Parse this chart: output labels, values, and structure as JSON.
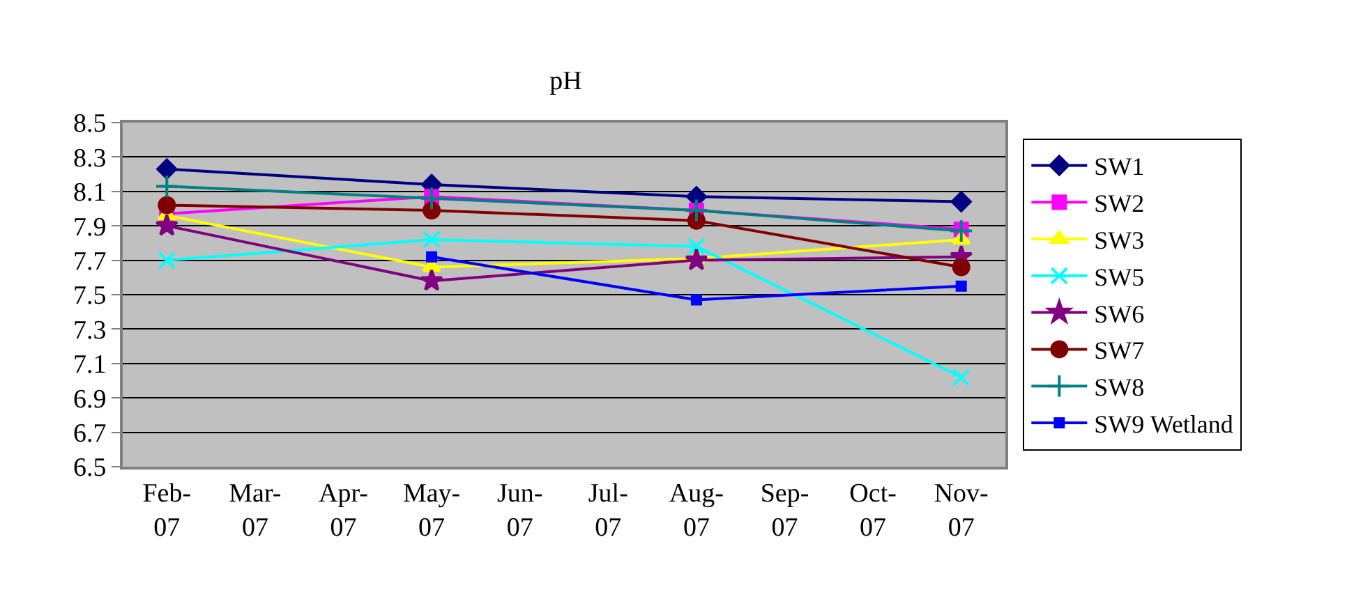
{
  "chart_data": {
    "type": "line",
    "title": "pH",
    "categories": [
      "Feb-07",
      "Mar-07",
      "Apr-07",
      "May-07",
      "Jun-07",
      "Jul-07",
      "Aug-07",
      "Sep-07",
      "Oct-07",
      "Nov-07"
    ],
    "series": [
      {
        "name": "SW1",
        "color": "#000080",
        "marker": "diamond",
        "values": [
          8.23,
          null,
          null,
          8.14,
          null,
          null,
          8.07,
          null,
          null,
          8.04
        ]
      },
      {
        "name": "SW2",
        "color": "#ff00ff",
        "marker": "square",
        "values": [
          7.97,
          null,
          null,
          8.07,
          null,
          null,
          7.99,
          null,
          null,
          7.88
        ]
      },
      {
        "name": "SW3",
        "color": "#ffff00",
        "marker": "triangle",
        "values": [
          7.96,
          null,
          null,
          7.66,
          null,
          null,
          7.71,
          null,
          null,
          7.82
        ]
      },
      {
        "name": "SW5",
        "color": "#00ffff",
        "marker": "x",
        "values": [
          7.7,
          null,
          null,
          7.82,
          null,
          null,
          7.78,
          null,
          null,
          7.02
        ]
      },
      {
        "name": "SW6",
        "color": "#800080",
        "marker": "star",
        "values": [
          7.9,
          null,
          null,
          7.58,
          null,
          null,
          7.7,
          null,
          null,
          7.72
        ]
      },
      {
        "name": "SW7",
        "color": "#800000",
        "marker": "circle",
        "values": [
          8.02,
          null,
          null,
          7.99,
          null,
          null,
          7.93,
          null,
          null,
          7.66
        ]
      },
      {
        "name": "SW8",
        "color": "#008080",
        "marker": "cross",
        "values": [
          8.13,
          null,
          null,
          8.06,
          null,
          null,
          7.99,
          null,
          null,
          7.87
        ]
      },
      {
        "name": "SW9 Wetland",
        "color": "#0000ff",
        "marker": "square",
        "values": [
          null,
          null,
          null,
          7.72,
          null,
          null,
          7.47,
          null,
          null,
          7.55
        ]
      }
    ],
    "ylim": [
      6.5,
      8.5
    ],
    "yticks": [
      6.5,
      6.7,
      6.9,
      7.1,
      7.3,
      7.5,
      7.7,
      7.9,
      8.1,
      8.3,
      8.5
    ],
    "grid": "y",
    "legend": "right",
    "line_style": "solid"
  }
}
